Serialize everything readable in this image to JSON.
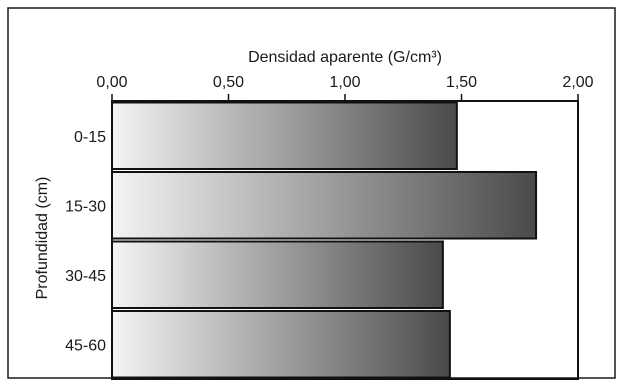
{
  "chart_data": {
    "type": "bar",
    "orientation": "horizontal",
    "xlabel": "Densidad aparente (G/cm³)",
    "ylabel": "Profundidad (cm)",
    "x_axis_position": "top",
    "xlim": [
      0,
      2.0
    ],
    "x_ticks": [
      0.0,
      0.5,
      1.0,
      1.5,
      2.0
    ],
    "x_tick_labels": [
      "0,00",
      "0,50",
      "1,00",
      "1,50",
      "2,00"
    ],
    "categories": [
      "0-15",
      "15-30",
      "30-45",
      "45-60"
    ],
    "values": [
      1.48,
      1.82,
      1.42,
      1.45
    ],
    "grid": false,
    "legend": "none",
    "bar_fill": "horizontal gradient light-to-dark gray",
    "colors": {
      "gradient_start": "#f4f4f4",
      "gradient_end": "#4a4a4a",
      "bar_stroke": "#111111",
      "frame_stroke": "#111111"
    }
  }
}
